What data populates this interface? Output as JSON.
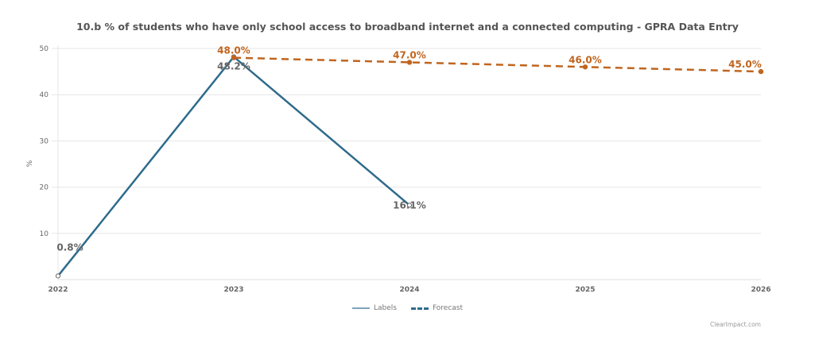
{
  "chart_data": {
    "type": "line",
    "title": "10.b % of students who have only school access to broadband internet and a connected computing - GPRA Data Entry",
    "xlabel": "",
    "ylabel": "%",
    "categories": [
      "2022",
      "2023",
      "2024",
      "2025",
      "2026"
    ],
    "ylim": [
      0,
      50
    ],
    "yticks": [
      10,
      20,
      30,
      40,
      50
    ],
    "grid": true,
    "legend_position": "bottom-center",
    "series": [
      {
        "name": "Labels",
        "style": "solid",
        "color": "#2e6b8c",
        "legend_color": "#7fa3bd",
        "values": [
          0.8,
          48.2,
          16.1,
          null,
          null
        ],
        "data_labels": [
          "0.8%",
          "48.2%",
          "16.1%",
          null,
          null
        ],
        "label_color": "#666666"
      },
      {
        "name": "Forecast",
        "style": "dashed",
        "color": "#c0651f",
        "legend_color": "#2e6b8c",
        "values": [
          null,
          48.0,
          47.0,
          46.0,
          45.0
        ],
        "data_labels": [
          null,
          "48.0%",
          "47.0%",
          "46.0%",
          "45.0%"
        ],
        "label_color": "#c0651f"
      }
    ]
  },
  "credits": "ClearImpact.com"
}
